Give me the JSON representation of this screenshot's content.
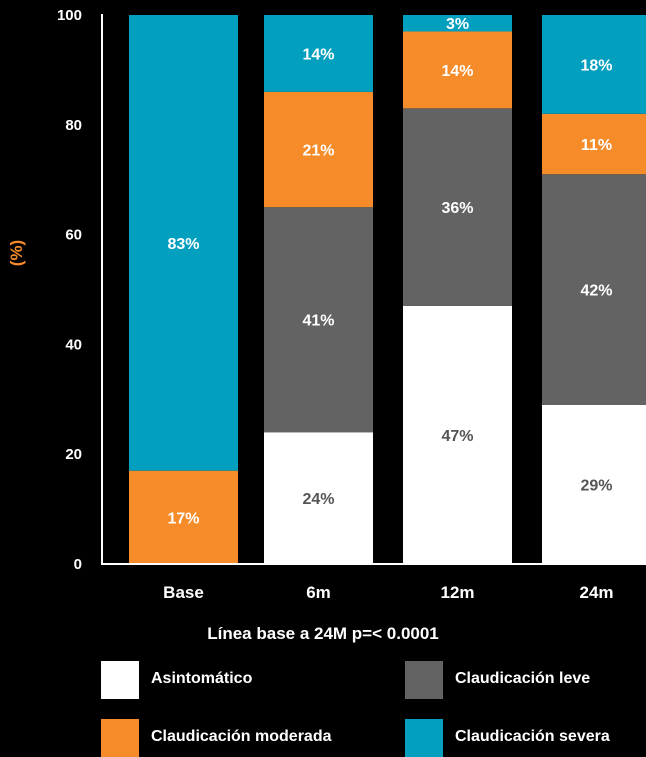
{
  "chart_data": {
    "type": "bar",
    "stacked": true,
    "ylabel": "(%)",
    "ylim": [
      0,
      100
    ],
    "yticks": [
      0,
      20,
      40,
      60,
      80,
      100
    ],
    "categories": [
      "Base",
      "6m",
      "12m",
      "24m"
    ],
    "series": [
      {
        "name": "Asintomático",
        "color": "#ffffff",
        "label_color": "#555555",
        "values": [
          0,
          24,
          47,
          29
        ]
      },
      {
        "name": "Claudicación leve",
        "color": "#636363",
        "label_color": "#ffffff",
        "values": [
          0,
          41,
          36,
          42
        ]
      },
      {
        "name": "Claudicación moderada",
        "color": "#f68b29",
        "label_color": "#ffffff",
        "values": [
          17,
          21,
          14,
          11
        ]
      },
      {
        "name": "Claudicación severa",
        "color": "#039fbf",
        "label_color": "#ffffff",
        "values": [
          83,
          14,
          3,
          18
        ]
      }
    ],
    "data_labels": [
      [
        "",
        "24%",
        "47%",
        "29%"
      ],
      [
        "",
        "41%",
        "36%",
        "42%"
      ],
      [
        "17%",
        "21%",
        "14%",
        "11%"
      ],
      [
        "83%",
        "14%",
        "3%",
        "18%"
      ]
    ],
    "annotation": "Línea base a 24M p=< 0.0001",
    "legend_position": "bottom",
    "grid": false,
    "ylabel_color": "#f68b29",
    "background": "#000000"
  }
}
